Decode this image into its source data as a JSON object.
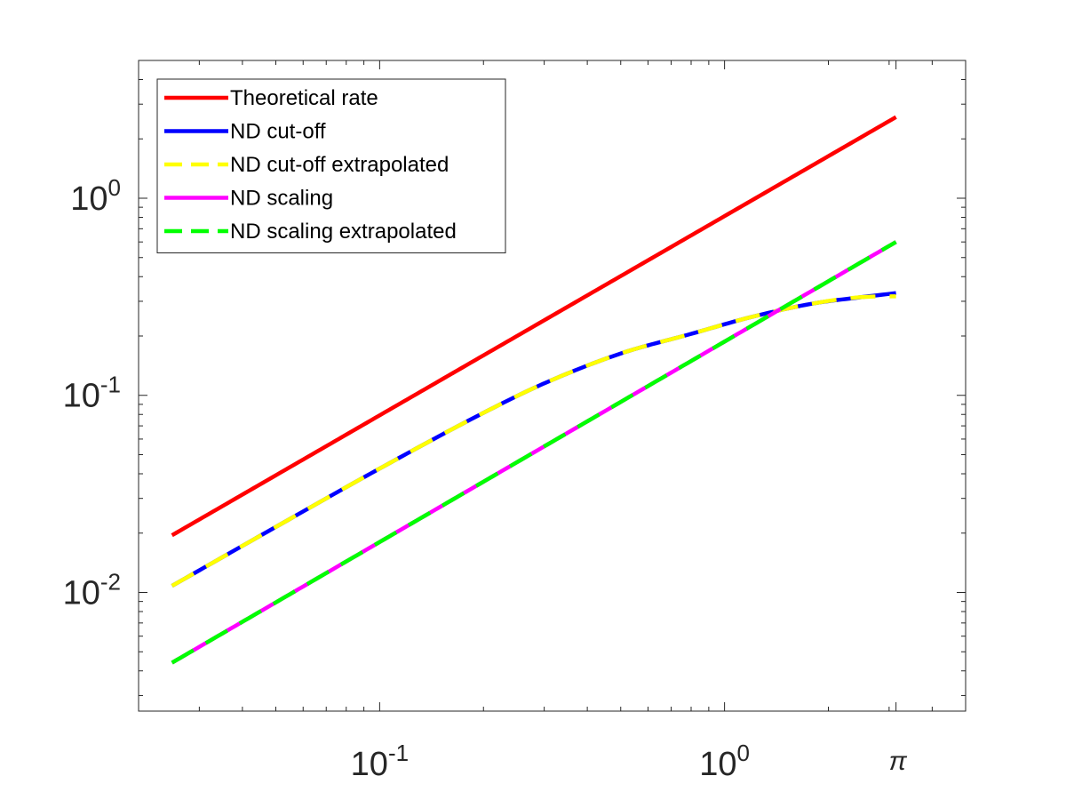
{
  "chart_data": {
    "type": "line",
    "title": "",
    "xlabel": "",
    "ylabel": "",
    "xscale": "log",
    "yscale": "log",
    "xlim": [
      0.02,
      5
    ],
    "ylim": [
      0.0025,
      5
    ],
    "grid": false,
    "legend_location": "top-left",
    "x_ticks": [
      {
        "value": 0.1,
        "base": "10",
        "exp": "-1"
      },
      {
        "value": 1,
        "base": "10",
        "exp": "0"
      },
      {
        "value": 3.14159,
        "text": "π"
      }
    ],
    "y_ticks": [
      {
        "value": 0.01,
        "base": "10",
        "exp": "-2"
      },
      {
        "value": 0.1,
        "base": "10",
        "exp": "-1"
      },
      {
        "value": 1,
        "base": "10",
        "exp": "0"
      }
    ],
    "series": [
      {
        "name": "Theoretical rate",
        "color": "#ff0000",
        "style": "solid",
        "x": [
          0.025,
          3.14159
        ],
        "y": [
          0.0195,
          2.58
        ]
      },
      {
        "name": "ND cut-off",
        "color": "#0000ff",
        "style": "solid",
        "x": [
          0.025,
          0.05,
          0.1,
          0.2,
          0.3,
          0.5,
          0.8,
          1.2,
          1.8,
          2.5,
          3.14159
        ],
        "y": [
          0.0108,
          0.0215,
          0.0425,
          0.0815,
          0.115,
          0.163,
          0.205,
          0.25,
          0.292,
          0.315,
          0.33
        ]
      },
      {
        "name": "ND cut-off extrapolated",
        "color": "#ffff00",
        "style": "dashed",
        "x": [
          0.025,
          0.05,
          0.1,
          0.2,
          0.3,
          0.5,
          0.8,
          1.2,
          1.8,
          2.5,
          3.14159
        ],
        "y": [
          0.0108,
          0.0215,
          0.0425,
          0.0815,
          0.115,
          0.163,
          0.205,
          0.25,
          0.292,
          0.315,
          0.318
        ]
      },
      {
        "name": "ND scaling",
        "color": "#ff00ff",
        "style": "solid",
        "x": [
          0.025,
          3.14159
        ],
        "y": [
          0.0044,
          0.6
        ]
      },
      {
        "name": "ND scaling extrapolated",
        "color": "#00ff00",
        "style": "dashed",
        "x": [
          0.025,
          3.14159
        ],
        "y": [
          0.0044,
          0.6
        ]
      }
    ]
  }
}
